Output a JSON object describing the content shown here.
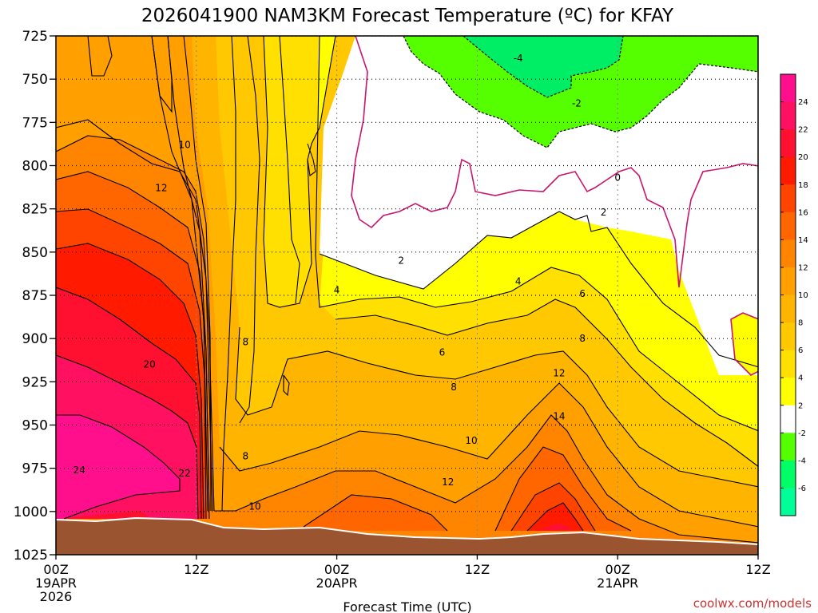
{
  "chart_data": {
    "type": "heatmap",
    "title": "2026041900 NAM3KM Forecast Temperature (ºC) for KFAY",
    "xlabel": "Forecast Time (UTC)",
    "ylabel": "",
    "x_ticks": [
      {
        "hour": 0,
        "lines": [
          "00Z",
          "19APR",
          "2026"
        ]
      },
      {
        "hour": 12,
        "lines": [
          "12Z"
        ]
      },
      {
        "hour": 24,
        "lines": [
          "00Z",
          "20APR"
        ]
      },
      {
        "hour": 36,
        "lines": [
          "12Z"
        ]
      },
      {
        "hour": 48,
        "lines": [
          "00Z",
          "21APR"
        ]
      },
      {
        "hour": 60,
        "lines": [
          "12Z"
        ]
      }
    ],
    "xlim": [
      0,
      60
    ],
    "y_ticks": [
      725,
      750,
      775,
      800,
      825,
      850,
      875,
      900,
      925,
      950,
      975,
      1000,
      1025
    ],
    "ylim": [
      725,
      1025
    ],
    "grid": true,
    "colorbar": {
      "levels": [
        24,
        22,
        20,
        18,
        16,
        14,
        12,
        10,
        8,
        6,
        4,
        2,
        -2,
        -4,
        -6
      ],
      "colors": [
        "#ff0f8c",
        "#ff1060",
        "#ff1030",
        "#ff1a00",
        "#ff4400",
        "#ff6600",
        "#ff8500",
        "#ff9f00",
        "#ffb400",
        "#ffc800",
        "#ffe000",
        "#ffff00",
        "#ffffff",
        "#55ff00",
        "#00ff66",
        "#00ff99"
      ]
    },
    "contour_labels": [
      {
        "text": "-4",
        "hour": 39.5,
        "p": 738
      },
      {
        "text": "-2",
        "hour": 44.5,
        "p": 764
      },
      {
        "text": "0",
        "hour": 48.0,
        "p": 807
      },
      {
        "text": "2",
        "hour": 46.8,
        "p": 827
      },
      {
        "text": "2",
        "hour": 29.5,
        "p": 855
      },
      {
        "text": "4",
        "hour": 24.0,
        "p": 872
      },
      {
        "text": "4",
        "hour": 39.5,
        "p": 867
      },
      {
        "text": "6",
        "hour": 45.0,
        "p": 874
      },
      {
        "text": "6",
        "hour": 33.0,
        "p": 908
      },
      {
        "text": "8",
        "hour": 45.0,
        "p": 900
      },
      {
        "text": "8",
        "hour": 16.2,
        "p": 902
      },
      {
        "text": "8",
        "hour": 34.0,
        "p": 928
      },
      {
        "text": "8",
        "hour": 16.2,
        "p": 968
      },
      {
        "text": "10",
        "hour": 11.0,
        "p": 788
      },
      {
        "text": "10",
        "hour": 35.5,
        "p": 959
      },
      {
        "text": "10",
        "hour": 17.0,
        "p": 997
      },
      {
        "text": "12",
        "hour": 9.0,
        "p": 813
      },
      {
        "text": "12",
        "hour": 43.0,
        "p": 920
      },
      {
        "text": "12",
        "hour": 33.5,
        "p": 983
      },
      {
        "text": "14",
        "hour": 43.0,
        "p": 945
      },
      {
        "text": "20",
        "hour": 8.0,
        "p": 915
      },
      {
        "text": "22",
        "hour": 11.0,
        "p": 978
      },
      {
        "text": "24",
        "hour": 2.0,
        "p": 976
      }
    ]
  },
  "watermark": "coolwx.com/models"
}
